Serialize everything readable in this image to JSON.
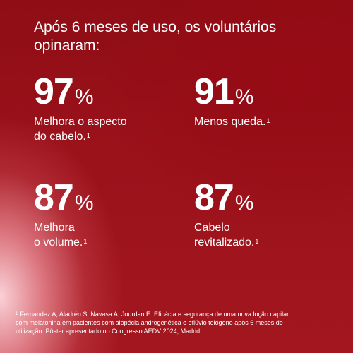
{
  "headline": {
    "line1": "Após 6 meses de uso, os voluntários",
    "line2": "opinaram:"
  },
  "stats": [
    {
      "value": "97",
      "unit": "%",
      "label_line1": "Melhora o aspecto",
      "label_line2": "do cabelo.",
      "ref": "1"
    },
    {
      "value": "91",
      "unit": "%",
      "label_line1": "Menos queda.",
      "label_line2": "",
      "ref": "1"
    },
    {
      "value": "87",
      "unit": "%",
      "label_line1": "Melhora",
      "label_line2": "o volume.",
      "ref": "1"
    },
    {
      "value": "87",
      "unit": "%",
      "label_line1": "Cabelo",
      "label_line2": "revitalizado.",
      "ref": "1"
    }
  ],
  "footnote": {
    "ref": "1",
    "line1": "Fernandez A, Aladrén S, Navasa A, Jourdan E. Eficácia e segurança de uma nova loção capilar",
    "line2": "com melatonina em pacientes com alopécia androgenética e eflúvio telógeno após 6 meses de",
    "line3": "utilização. Pôster apresentado no Congresso AEDV 2024, Madrid."
  },
  "colors": {
    "background_dark": "#9b121b",
    "highlight_pink": "#f4b4bc",
    "text": "#ffffff"
  }
}
